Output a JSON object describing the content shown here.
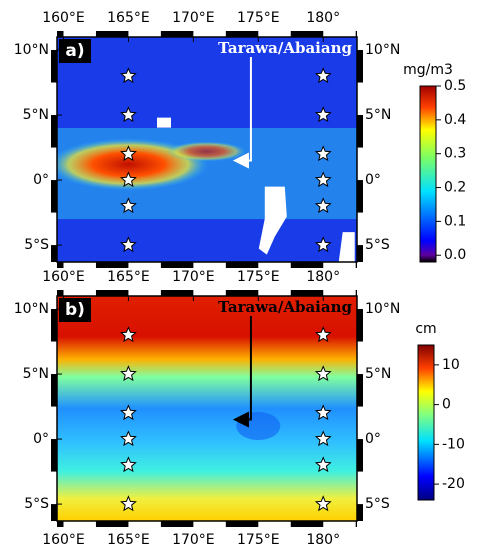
{
  "map": {
    "xlim": [
      159.5,
      182.6
    ],
    "ylim": [
      -6.3,
      11
    ],
    "xticks": [
      {
        "value": 160,
        "label": "160°E"
      },
      {
        "value": 165,
        "label": "165°E"
      },
      {
        "value": 170,
        "label": "170°E"
      },
      {
        "value": 175,
        "label": "175°E"
      },
      {
        "value": 180,
        "label": "180°"
      }
    ],
    "yticks": [
      {
        "value": 10,
        "label": "10°N"
      },
      {
        "value": 5,
        "label": "5°N"
      },
      {
        "value": 0,
        "label": "0°"
      },
      {
        "value": -5,
        "label": "5°S"
      }
    ],
    "stars": {
      "lon": [
        165,
        165,
        165,
        165,
        165,
        165,
        180,
        180,
        180,
        180,
        180,
        180
      ],
      "lat": [
        8,
        5,
        2,
        0,
        -2,
        -5,
        8,
        5,
        2,
        0,
        -2,
        -5
      ]
    },
    "site": {
      "name": "Tarawa/Abaiang",
      "lon": 173.2,
      "lat": 1.5
    }
  },
  "panels": [
    {
      "label": "a)",
      "colorbar": {
        "unit": "mg/m3",
        "lim": [
          -0.02,
          0.5
        ],
        "ticks": [
          {
            "value": 0,
            "label": "0.0"
          },
          0.1,
          0.2,
          0.3,
          0.4,
          0.5
        ]
      }
    },
    {
      "label": "b)",
      "colorbar": {
        "unit": "cm",
        "lim": [
          -24,
          15
        ],
        "ticks": [
          10,
          0,
          -10,
          -20
        ]
      }
    }
  ]
}
